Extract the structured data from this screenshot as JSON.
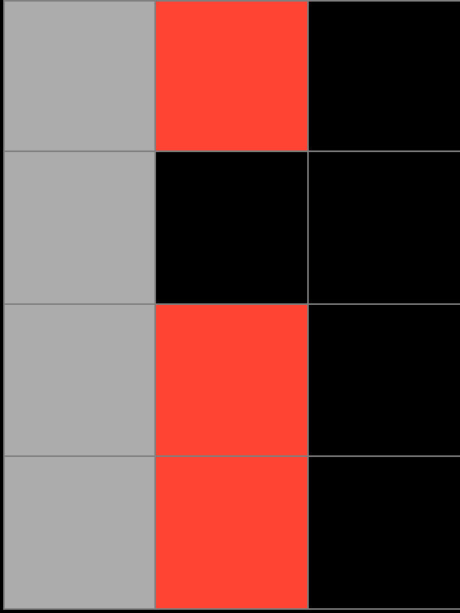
{
  "palette": {
    "gray": "#acacac",
    "red": "#ff4433",
    "black": "#000000",
    "grid_line": "#7f7f7f"
  },
  "grid": {
    "rows": 4,
    "columns": 3,
    "cells": [
      [
        "gray",
        "red",
        "black"
      ],
      [
        "gray",
        "black",
        "black"
      ],
      [
        "gray",
        "red",
        "black"
      ],
      [
        "gray",
        "red",
        "black"
      ]
    ]
  }
}
